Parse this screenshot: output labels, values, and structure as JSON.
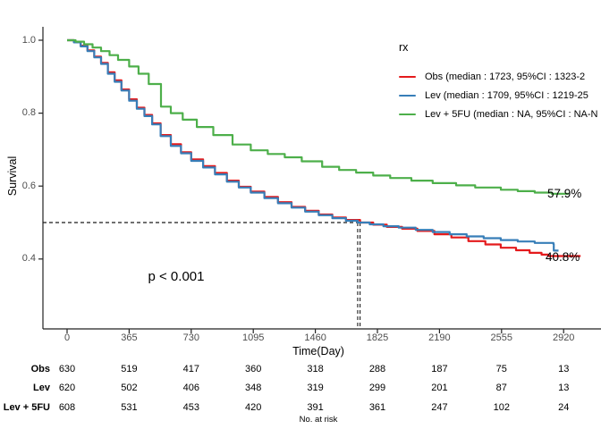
{
  "colors": {
    "obs": "#E41A1C",
    "lev": "#377EB8",
    "lev_5fu": "#4DAF4A",
    "axis": "#222222",
    "dashed_line": "#1a1a1a"
  },
  "legend": {
    "title": "rx",
    "items": [
      {
        "label": "Obs (median : 1723, 95%CI : 1323-2",
        "color": "#E41A1C"
      },
      {
        "label": "Lev (median : 1709, 95%CI : 1219-25",
        "color": "#377EB8"
      },
      {
        "label": "Lev + 5FU (median : NA, 95%CI : NA-N",
        "color": "#4DAF4A"
      }
    ]
  },
  "chart_data": {
    "type": "line",
    "chart_kind": "kaplan-meier-step",
    "title": "",
    "xlabel": "Time(Day)",
    "ylabel": "Survival",
    "x_ticks": [
      0,
      365,
      730,
      1095,
      1460,
      1825,
      2190,
      2555,
      2920
    ],
    "y_ticks": [
      1.0,
      0.8,
      0.6,
      0.4
    ],
    "y_tick_labels": [
      "1.0",
      "0.8",
      "0.6",
      "0.4"
    ],
    "xlim": [
      0,
      3150
    ],
    "ylim": [
      0.21,
      1.04
    ],
    "grid": false,
    "legend_position": "right-top",
    "annotations": {
      "p_value": "p < 0.001",
      "obs_end_label": "40.8%",
      "lev_5fu_end_label": "57.9%"
    },
    "reference_lines": {
      "survival_level": 0.5,
      "median_times": [
        1709,
        1723
      ]
    },
    "series": [
      {
        "name": "Obs",
        "color": "#E41A1C",
        "median": 1723,
        "points": [
          [
            0,
            1.0
          ],
          [
            40,
            0.995
          ],
          [
            80,
            0.985
          ],
          [
            120,
            0.972
          ],
          [
            160,
            0.955
          ],
          [
            200,
            0.938
          ],
          [
            240,
            0.912
          ],
          [
            280,
            0.89
          ],
          [
            320,
            0.865
          ],
          [
            365,
            0.838
          ],
          [
            410,
            0.815
          ],
          [
            455,
            0.795
          ],
          [
            500,
            0.772
          ],
          [
            550,
            0.74
          ],
          [
            610,
            0.715
          ],
          [
            670,
            0.693
          ],
          [
            730,
            0.673
          ],
          [
            800,
            0.655
          ],
          [
            870,
            0.636
          ],
          [
            940,
            0.615
          ],
          [
            1010,
            0.598
          ],
          [
            1080,
            0.585
          ],
          [
            1160,
            0.57
          ],
          [
            1240,
            0.556
          ],
          [
            1320,
            0.543
          ],
          [
            1400,
            0.532
          ],
          [
            1480,
            0.522
          ],
          [
            1560,
            0.514
          ],
          [
            1640,
            0.507
          ],
          [
            1723,
            0.5
          ],
          [
            1800,
            0.494
          ],
          [
            1880,
            0.488
          ],
          [
            1970,
            0.483
          ],
          [
            2060,
            0.477
          ],
          [
            2160,
            0.468
          ],
          [
            2260,
            0.459
          ],
          [
            2360,
            0.449
          ],
          [
            2460,
            0.44
          ],
          [
            2550,
            0.431
          ],
          [
            2640,
            0.424
          ],
          [
            2720,
            0.417
          ],
          [
            2790,
            0.412
          ],
          [
            2830,
            0.408
          ],
          [
            3020,
            0.408
          ]
        ]
      },
      {
        "name": "Lev",
        "color": "#377EB8",
        "median": 1709,
        "points": [
          [
            0,
            1.0
          ],
          [
            40,
            0.994
          ],
          [
            80,
            0.983
          ],
          [
            120,
            0.97
          ],
          [
            160,
            0.953
          ],
          [
            200,
            0.935
          ],
          [
            240,
            0.908
          ],
          [
            280,
            0.886
          ],
          [
            320,
            0.862
          ],
          [
            365,
            0.834
          ],
          [
            410,
            0.812
          ],
          [
            455,
            0.792
          ],
          [
            500,
            0.769
          ],
          [
            550,
            0.737
          ],
          [
            610,
            0.71
          ],
          [
            670,
            0.69
          ],
          [
            730,
            0.669
          ],
          [
            800,
            0.651
          ],
          [
            870,
            0.632
          ],
          [
            940,
            0.612
          ],
          [
            1010,
            0.596
          ],
          [
            1080,
            0.582
          ],
          [
            1160,
            0.567
          ],
          [
            1240,
            0.553
          ],
          [
            1320,
            0.541
          ],
          [
            1400,
            0.53
          ],
          [
            1480,
            0.52
          ],
          [
            1560,
            0.512
          ],
          [
            1640,
            0.505
          ],
          [
            1709,
            0.5
          ],
          [
            1780,
            0.495
          ],
          [
            1860,
            0.49
          ],
          [
            1950,
            0.486
          ],
          [
            2050,
            0.48
          ],
          [
            2150,
            0.474
          ],
          [
            2250,
            0.468
          ],
          [
            2350,
            0.462
          ],
          [
            2450,
            0.457
          ],
          [
            2550,
            0.452
          ],
          [
            2650,
            0.448
          ],
          [
            2750,
            0.444
          ],
          [
            2860,
            0.441
          ],
          [
            2862,
            0.423
          ],
          [
            2890,
            0.423
          ]
        ]
      },
      {
        "name": "Lev + 5FU",
        "color": "#4DAF4A",
        "median": null,
        "points": [
          [
            0,
            1.0
          ],
          [
            50,
            0.996
          ],
          [
            100,
            0.989
          ],
          [
            150,
            0.98
          ],
          [
            200,
            0.97
          ],
          [
            250,
            0.959
          ],
          [
            300,
            0.946
          ],
          [
            365,
            0.928
          ],
          [
            420,
            0.908
          ],
          [
            480,
            0.88
          ],
          [
            552,
            0.818
          ],
          [
            610,
            0.8
          ],
          [
            680,
            0.782
          ],
          [
            763,
            0.762
          ],
          [
            860,
            0.74
          ],
          [
            973,
            0.714
          ],
          [
            1080,
            0.698
          ],
          [
            1180,
            0.688
          ],
          [
            1280,
            0.679
          ],
          [
            1380,
            0.668
          ],
          [
            1500,
            0.653
          ],
          [
            1600,
            0.644
          ],
          [
            1700,
            0.637
          ],
          [
            1800,
            0.629
          ],
          [
            1900,
            0.622
          ],
          [
            2025,
            0.615
          ],
          [
            2150,
            0.608
          ],
          [
            2288,
            0.602
          ],
          [
            2400,
            0.596
          ],
          [
            2551,
            0.59
          ],
          [
            2650,
            0.586
          ],
          [
            2750,
            0.582
          ],
          [
            2850,
            0.579
          ],
          [
            2950,
            0.579
          ]
        ]
      }
    ]
  },
  "risk_table": {
    "caption": "No. at risk",
    "times": [
      0,
      365,
      730,
      1095,
      1460,
      1825,
      2190,
      2555,
      2920
    ],
    "rows": [
      {
        "label": "Obs",
        "values": [
          630,
          519,
          417,
          360,
          318,
          288,
          187,
          75,
          13
        ]
      },
      {
        "label": "Lev",
        "values": [
          620,
          502,
          406,
          348,
          319,
          299,
          201,
          87,
          13
        ]
      },
      {
        "label": "Lev + 5FU",
        "values": [
          608,
          531,
          453,
          420,
          391,
          361,
          247,
          102,
          24
        ]
      }
    ]
  }
}
